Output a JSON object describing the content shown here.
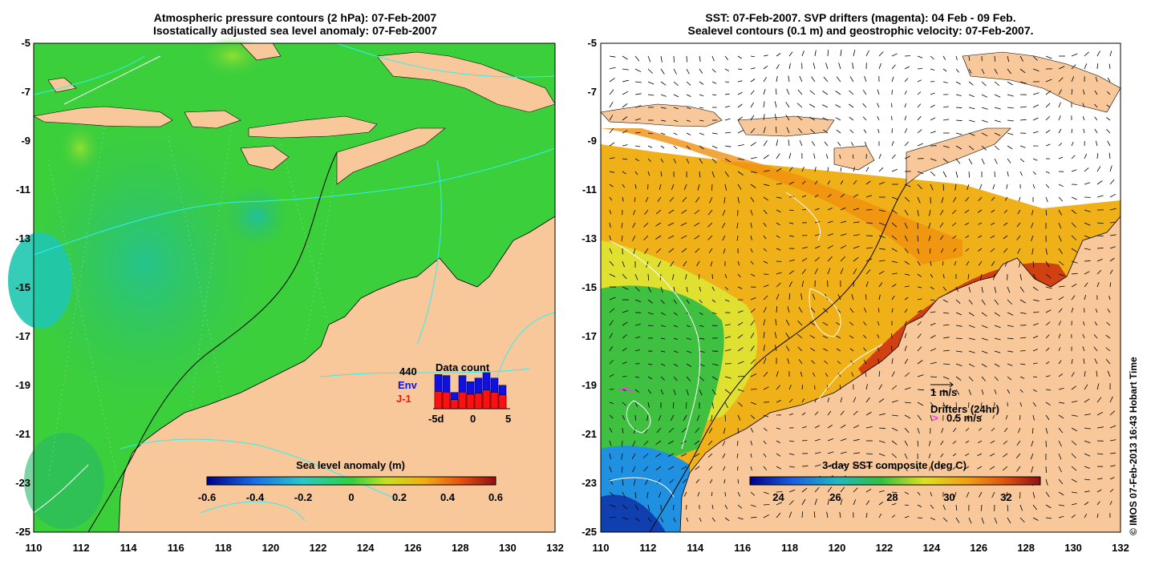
{
  "left_panel": {
    "title_line1": "Atmospheric pressure contours (2 hPa): 07-Feb-2007",
    "title_line2": "Isostatically adjusted sea level anomaly: 07-Feb-2007",
    "y_ticks": [
      "-5",
      "-7",
      "-9",
      "-11",
      "-13",
      "-15",
      "-17",
      "-19",
      "-21",
      "-23",
      "-25"
    ],
    "x_ticks": [
      "110",
      "112",
      "114",
      "116",
      "118",
      "120",
      "122",
      "124",
      "126",
      "128",
      "130",
      "132"
    ],
    "colorbar_title": "Sea level anomaly (m)",
    "colorbar_ticks": [
      "-0.6",
      "-0.4",
      "-0.2",
      "0",
      "0.2",
      "0.4",
      "0.6"
    ],
    "data_count": {
      "title": "Data count",
      "max_label": "440",
      "env_label": "Env",
      "j1_label": "J-1",
      "axis_labels": [
        "-5d",
        "0",
        "5"
      ],
      "env_color": "#1010e0",
      "j1_color": "#ff1010",
      "env_values": [
        0.95,
        0.92,
        0.45,
        0.92,
        0.75,
        0.85,
        1.0,
        0.85,
        0.65
      ],
      "j1_values": [
        0.48,
        0.46,
        0.25,
        0.46,
        0.4,
        0.43,
        0.52,
        0.45,
        0.38
      ]
    }
  },
  "right_panel": {
    "title_line1": "SST: 07-Feb-2007. SVP drifters (magenta): 04 Feb - 09 Feb.",
    "title_line2": "Sealevel contours (0.1 m) and geostrophic velocity: 07-Feb-2007.",
    "y_ticks": [
      "-5",
      "-7",
      "-9",
      "-11",
      "-13",
      "-15",
      "-17",
      "-19",
      "-21",
      "-23",
      "-25"
    ],
    "x_ticks": [
      "110",
      "112",
      "114",
      "116",
      "118",
      "120",
      "122",
      "124",
      "126",
      "128",
      "130",
      "132"
    ],
    "colorbar_title": "3-day SST composite (deg C)",
    "colorbar_ticks": [
      "24",
      "26",
      "28",
      "30",
      "32"
    ],
    "velocity_label": "1 m/s",
    "drifters_label": "Drifters (24hr)",
    "drifter_speed_label": "0.5 m/s",
    "drifter_symbol": ">"
  },
  "credit": "© IMOS 07-Feb-2013 16:43 Hobart Time",
  "colors": {
    "land": "#f9c89a",
    "ocean_green": "#3ccf3c",
    "sst_warm": "#f0a018",
    "sst_cool": "#2a8ae0",
    "drifter": "#ff30ff"
  }
}
